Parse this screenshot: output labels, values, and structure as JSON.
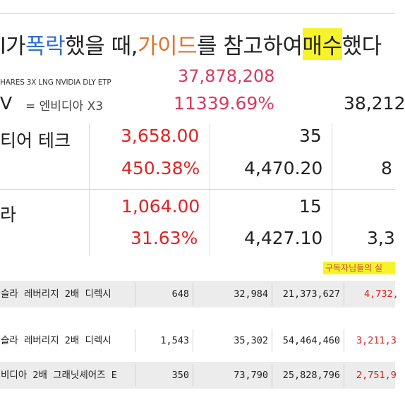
{
  "headline": {
    "part1": "l가 ",
    "part2": "폭락",
    "part3": "했을 때, ",
    "part4": "가이드",
    "part5": "를 참고하여 ",
    "part6": "매수",
    "part7": "했다"
  },
  "etp": {
    "name": "HARES 3X LNG NVIDIA DLY ETP",
    "value": "37,878,208",
    "ticker_suffix": "V",
    "alias": "= 엔비디아 X3",
    "percent": "11339.69%",
    "right_value": "38,212"
  },
  "panel": {
    "row1_label": "티어 테크",
    "row1_price": "3,658.00",
    "row1_qty": "35",
    "row1_pct": "450.38%",
    "row1_avg": "4,470.20",
    "row1_right": "8",
    "row2_label": "라",
    "row2_price": "1,064.00",
    "row2_qty": "15",
    "row2_pct": "31.63%",
    "row2_avg": "4,427.10",
    "row2_right": "3,3"
  },
  "subscriber_tag": "구독자님들의 실",
  "table": {
    "rows": [
      {
        "name": "슬라 레버리지 2배 디렉시",
        "qty": "648",
        "price": "32,984",
        "amount": "21,373,627",
        "profit": "4,732,"
      },
      {
        "name": "슬라 레버리지 2배 디렉시",
        "qty": "1,543",
        "price": "35,302",
        "amount": "54,464,460",
        "profit": "3,211,3"
      },
      {
        "name": "비디아 2배 그래닛셰어즈 E",
        "qty": "350",
        "price": "73,790",
        "amount": "25,828,796",
        "profit": "2,751,9"
      }
    ]
  },
  "colors": {
    "accent_red": "#e02424",
    "pink_red": "#d63a5e",
    "highlight_yellow": "#f7f32a",
    "blue": "#2f6fd3",
    "orange": "#e0732a"
  }
}
